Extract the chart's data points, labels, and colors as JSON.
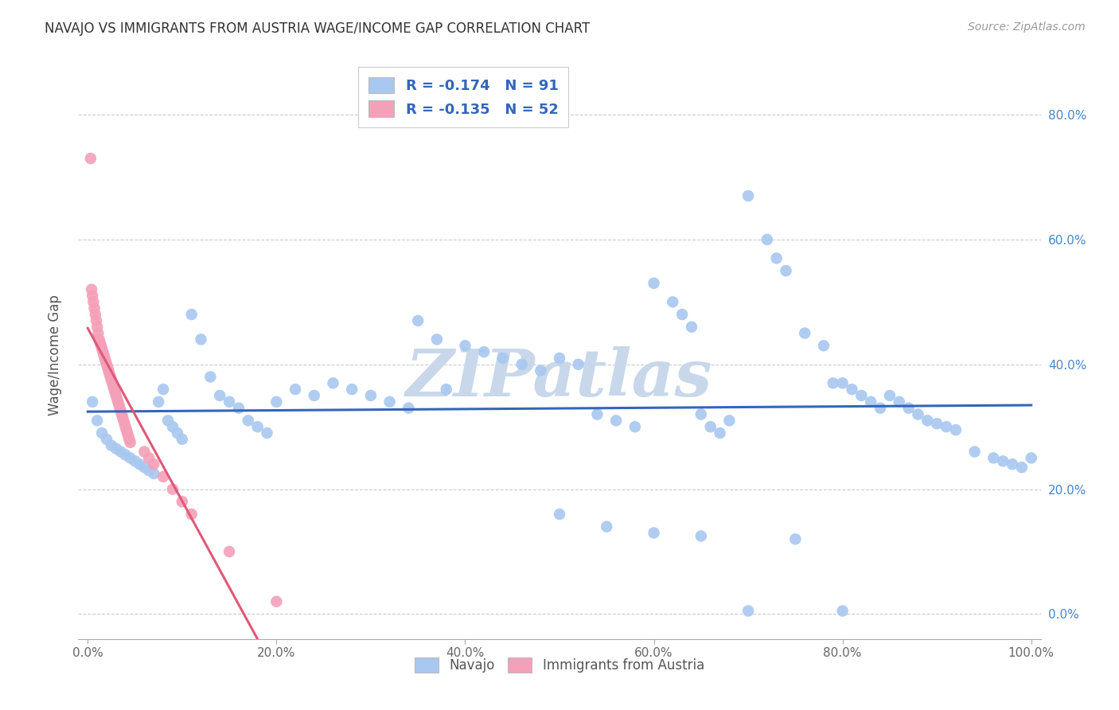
{
  "title": "NAVAJO VS IMMIGRANTS FROM AUSTRIA WAGE/INCOME GAP CORRELATION CHART",
  "source": "Source: ZipAtlas.com",
  "ylabel": "Wage/Income Gap",
  "xlim": [
    -0.01,
    1.01
  ],
  "ylim": [
    -0.04,
    0.87
  ],
  "xticks": [
    0.0,
    0.2,
    0.4,
    0.6,
    0.8,
    1.0
  ],
  "yticks": [
    0.0,
    0.2,
    0.4,
    0.6,
    0.8
  ],
  "xticklabels": [
    "0.0%",
    "20.0%",
    "40.0%",
    "60.0%",
    "80.0%",
    "100.0%"
  ],
  "yticklabels": [
    "0.0%",
    "20.0%",
    "40.0%",
    "60.0%",
    "80.0%"
  ],
  "navajo_R": -0.174,
  "navajo_N": 91,
  "austria_R": -0.135,
  "austria_N": 52,
  "navajo_color": "#a8c8f0",
  "austria_color": "#f4a0b8",
  "navajo_line_color": "#3366bb",
  "austria_line_color": "#e05878",
  "watermark": "ZIPatlas",
  "watermark_color": "#c8d8ea",
  "legend_label_1": "Navajo",
  "legend_label_2": "Immigrants from Austria",
  "navajo_x": [
    0.005,
    0.01,
    0.015,
    0.02,
    0.025,
    0.03,
    0.035,
    0.04,
    0.045,
    0.05,
    0.055,
    0.06,
    0.065,
    0.07,
    0.075,
    0.08,
    0.085,
    0.09,
    0.095,
    0.1,
    0.11,
    0.12,
    0.13,
    0.14,
    0.15,
    0.16,
    0.17,
    0.18,
    0.19,
    0.2,
    0.22,
    0.24,
    0.26,
    0.28,
    0.3,
    0.32,
    0.34,
    0.35,
    0.37,
    0.38,
    0.4,
    0.42,
    0.44,
    0.46,
    0.48,
    0.5,
    0.52,
    0.54,
    0.56,
    0.58,
    0.6,
    0.62,
    0.63,
    0.64,
    0.65,
    0.66,
    0.67,
    0.68,
    0.7,
    0.72,
    0.73,
    0.74,
    0.76,
    0.78,
    0.79,
    0.8,
    0.81,
    0.82,
    0.83,
    0.84,
    0.85,
    0.86,
    0.87,
    0.88,
    0.89,
    0.9,
    0.91,
    0.92,
    0.94,
    0.96,
    0.97,
    0.98,
    0.99,
    1.0,
    0.5,
    0.55,
    0.6,
    0.65,
    0.7,
    0.75,
    0.8
  ],
  "navajo_y": [
    0.34,
    0.31,
    0.29,
    0.28,
    0.27,
    0.265,
    0.26,
    0.255,
    0.25,
    0.245,
    0.24,
    0.235,
    0.23,
    0.225,
    0.34,
    0.36,
    0.31,
    0.3,
    0.29,
    0.28,
    0.48,
    0.44,
    0.38,
    0.35,
    0.34,
    0.33,
    0.31,
    0.3,
    0.29,
    0.34,
    0.36,
    0.35,
    0.37,
    0.36,
    0.35,
    0.34,
    0.33,
    0.47,
    0.44,
    0.36,
    0.43,
    0.42,
    0.41,
    0.4,
    0.39,
    0.41,
    0.4,
    0.32,
    0.31,
    0.3,
    0.53,
    0.5,
    0.48,
    0.46,
    0.32,
    0.3,
    0.29,
    0.31,
    0.67,
    0.6,
    0.57,
    0.55,
    0.45,
    0.43,
    0.37,
    0.37,
    0.36,
    0.35,
    0.34,
    0.33,
    0.35,
    0.34,
    0.33,
    0.32,
    0.31,
    0.305,
    0.3,
    0.295,
    0.26,
    0.25,
    0.245,
    0.24,
    0.235,
    0.25,
    0.16,
    0.14,
    0.13,
    0.125,
    0.005,
    0.12,
    0.005
  ],
  "austria_x": [
    0.003,
    0.004,
    0.005,
    0.006,
    0.007,
    0.008,
    0.009,
    0.01,
    0.011,
    0.012,
    0.013,
    0.014,
    0.015,
    0.016,
    0.017,
    0.018,
    0.019,
    0.02,
    0.021,
    0.022,
    0.023,
    0.024,
    0.025,
    0.026,
    0.027,
    0.028,
    0.029,
    0.03,
    0.031,
    0.032,
    0.033,
    0.034,
    0.035,
    0.036,
    0.037,
    0.038,
    0.039,
    0.04,
    0.041,
    0.042,
    0.043,
    0.044,
    0.045,
    0.06,
    0.065,
    0.07,
    0.08,
    0.09,
    0.1,
    0.11,
    0.15,
    0.2
  ],
  "austria_y": [
    0.73,
    0.52,
    0.51,
    0.5,
    0.49,
    0.48,
    0.47,
    0.46,
    0.45,
    0.44,
    0.435,
    0.43,
    0.425,
    0.42,
    0.415,
    0.41,
    0.405,
    0.4,
    0.395,
    0.39,
    0.385,
    0.38,
    0.375,
    0.37,
    0.365,
    0.36,
    0.355,
    0.35,
    0.345,
    0.34,
    0.335,
    0.33,
    0.325,
    0.32,
    0.315,
    0.31,
    0.305,
    0.3,
    0.295,
    0.29,
    0.285,
    0.28,
    0.275,
    0.26,
    0.25,
    0.24,
    0.22,
    0.2,
    0.18,
    0.16,
    0.1,
    0.02
  ]
}
